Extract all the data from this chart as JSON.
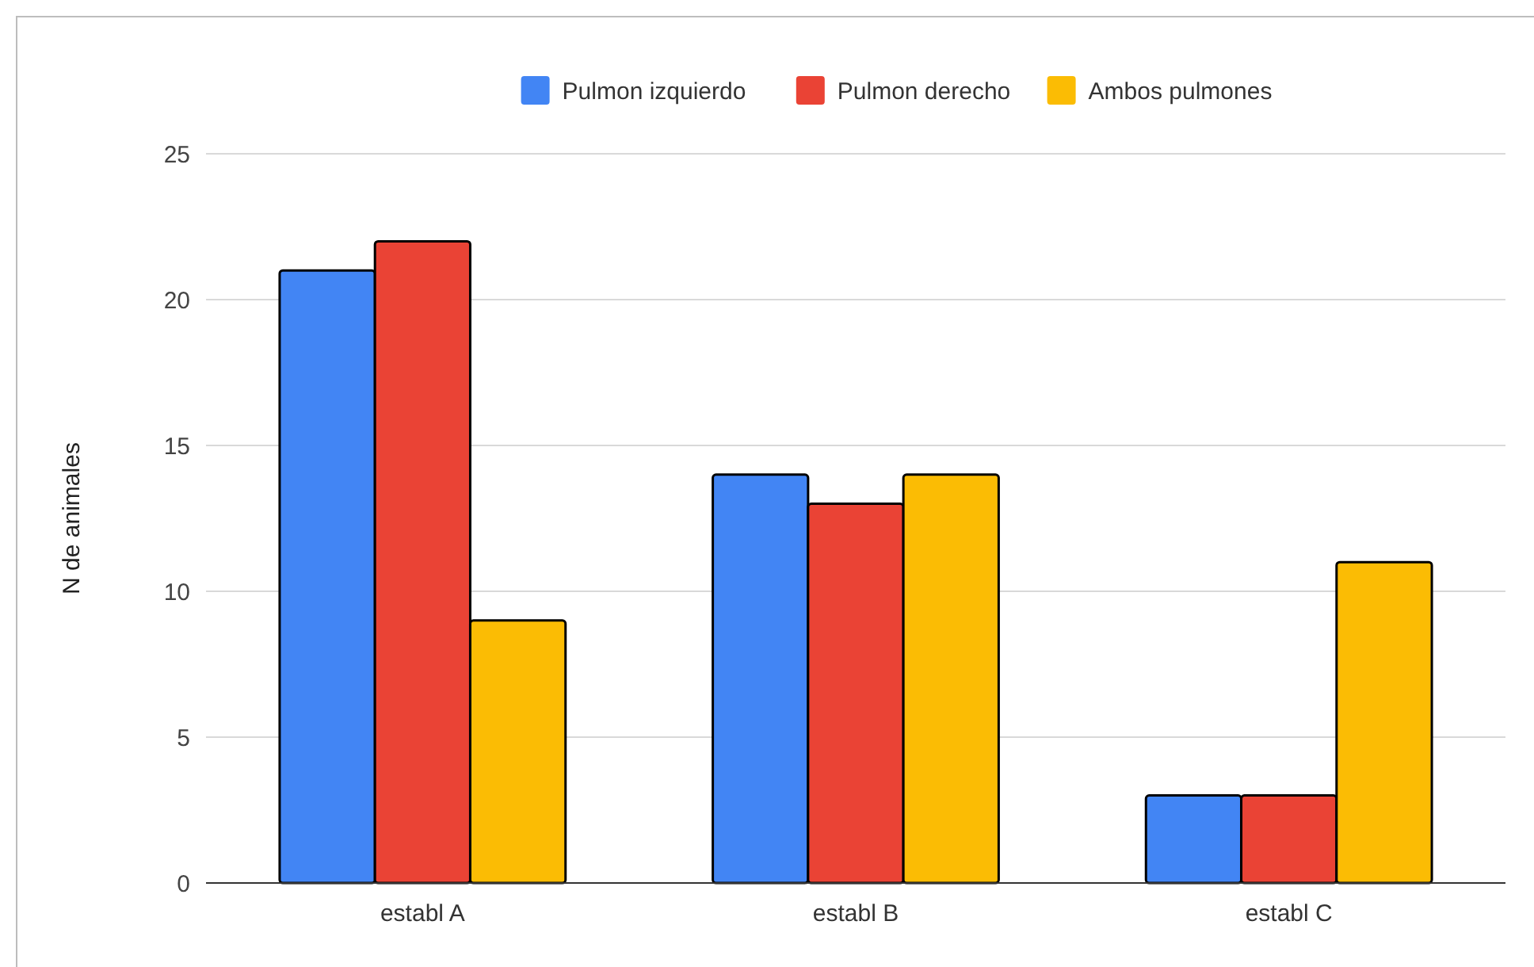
{
  "chart_data": {
    "type": "bar",
    "ylabel": "N de animales",
    "categories": [
      "establ A",
      "establ B",
      "establ C"
    ],
    "series": [
      {
        "name": "Pulmon izquierdo",
        "color": "#4285f4",
        "values": [
          21,
          14,
          3
        ]
      },
      {
        "name": "Pulmon derecho",
        "color": "#ea4335",
        "values": [
          22,
          13,
          3
        ]
      },
      {
        "name": "Ambos pulmones",
        "color": "#fbbc04",
        "values": [
          9,
          14,
          11
        ]
      }
    ],
    "ylim": [
      0,
      25
    ],
    "yticks": [
      0,
      5,
      10,
      15,
      20,
      25
    ],
    "grid": "y",
    "legend": "top"
  }
}
